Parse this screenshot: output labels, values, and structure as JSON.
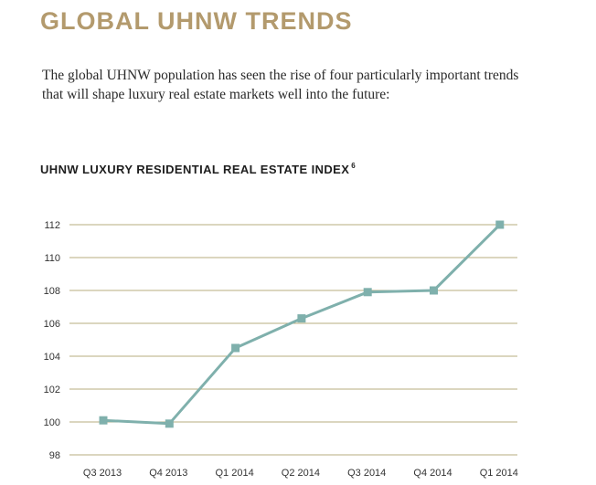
{
  "header": {
    "title": "GLOBAL UHNW TRENDS",
    "intro": "The global UHNW population has seen the rise of four particularly important trends that will shape luxury real estate markets well into the future:"
  },
  "colors": {
    "title": "#b39a6d",
    "gridline": "#b7ad7f",
    "series": "#7fb0ac"
  },
  "chart_data": {
    "type": "line",
    "title": "UHNW LUXURY RESIDENTIAL REAL ESTATE INDEX",
    "title_footnote": "6",
    "categories": [
      "Q3 2013",
      "Q4 2013",
      "Q1 2014",
      "Q2 2014",
      "Q3 2014",
      "Q4 2014",
      "Q1 2014"
    ],
    "series": [
      {
        "values": [
          100.1,
          99.9,
          104.5,
          106.3,
          107.9,
          108.0,
          112.0
        ]
      }
    ],
    "ylim": [
      98,
      112
    ],
    "yticks": [
      98,
      100,
      102,
      104,
      106,
      108,
      110,
      112
    ],
    "grid": true,
    "legend": "none",
    "marker": "square"
  }
}
